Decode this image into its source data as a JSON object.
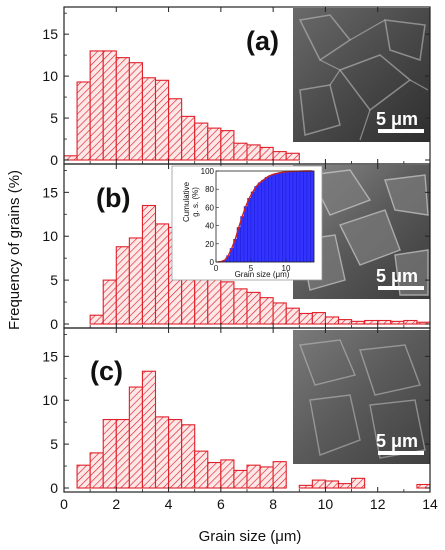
{
  "figure": {
    "ylabel": "Frequency of grains (%)",
    "xlabel": "Grain size (μm)",
    "scale_bar": "5 μm"
  },
  "colors": {
    "bar_edge": "#e0202a",
    "bar_hatch": "#e0202a",
    "bar_fill": "#fde7e7",
    "inset_fill": "#3333ff",
    "inset_line": "#cc2222"
  },
  "chart_data": [
    {
      "type": "bar",
      "panel": "(a)",
      "bin_width": 0.5,
      "x": [
        0.25,
        0.75,
        1.25,
        1.75,
        2.25,
        2.75,
        3.25,
        3.75,
        4.25,
        4.75,
        5.25,
        5.75,
        6.25,
        6.75,
        7.25,
        7.75,
        8.25,
        8.75
      ],
      "values": [
        0.5,
        9.3,
        13.0,
        13.0,
        12.2,
        11.6,
        9.8,
        9.5,
        7.3,
        5.2,
        4.4,
        3.8,
        3.5,
        2.0,
        1.8,
        1.5,
        1.0,
        0.8
      ],
      "xlim": [
        0,
        14
      ],
      "ylim": [
        0,
        18
      ],
      "yticks": [
        0,
        5,
        10,
        15
      ],
      "grid": false
    },
    {
      "type": "bar",
      "panel": "(b)",
      "bin_width": 0.5,
      "x": [
        1.25,
        1.75,
        2.25,
        2.75,
        3.25,
        3.75,
        4.25,
        4.75,
        5.25,
        5.75,
        6.25,
        6.75,
        7.25,
        7.75,
        8.25,
        8.75,
        9.25,
        9.75,
        10.25,
        10.75,
        11.25,
        11.75,
        12.25,
        12.75,
        13.25,
        13.75
      ],
      "values": [
        1.0,
        5.0,
        8.8,
        9.8,
        13.5,
        11.4,
        11.0,
        9.3,
        7.5,
        5.9,
        4.8,
        4.0,
        3.6,
        3.0,
        2.4,
        1.8,
        1.2,
        1.3,
        0.8,
        0.5,
        0.3,
        0.4,
        0.4,
        0.3,
        0.4,
        0.2
      ],
      "xlim": [
        0,
        14
      ],
      "ylim": [
        0,
        18
      ],
      "yticks": [
        0,
        5,
        10,
        15
      ],
      "grid": false
    },
    {
      "type": "bar",
      "panel": "(c)",
      "bin_width": 0.5,
      "x": [
        0.75,
        1.25,
        1.75,
        2.25,
        2.75,
        3.25,
        3.75,
        4.25,
        4.75,
        5.25,
        5.75,
        6.25,
        6.75,
        7.25,
        7.75,
        8.25,
        8.75,
        9.25,
        9.75,
        10.25,
        10.75,
        11.25,
        13.25,
        13.75
      ],
      "values": [
        2.6,
        4.0,
        7.8,
        7.8,
        11.5,
        13.3,
        8.1,
        7.8,
        7.2,
        4.2,
        2.9,
        3.2,
        2.0,
        2.6,
        2.4,
        3.0,
        0.0,
        0.3,
        0.9,
        0.8,
        0.5,
        1.1,
        0.0,
        0.4
      ],
      "xlim": [
        0,
        14
      ],
      "ylim": [
        0,
        18
      ],
      "yticks": [
        0,
        5,
        10,
        15
      ],
      "xticks": [
        0,
        2,
        4,
        6,
        8,
        10,
        12,
        14
      ],
      "grid": false
    },
    {
      "type": "bar",
      "panel": "(b) inset",
      "xlabel": "Grain size (μm)",
      "ylabel_lines": [
        "Cumulative",
        "g. s. (%)"
      ],
      "xticks": [
        0,
        5,
        10
      ],
      "yticks": [
        0,
        20,
        40,
        60,
        80,
        100
      ],
      "xlim": [
        0,
        14
      ],
      "ylim": [
        0,
        100
      ],
      "x": [
        0.25,
        0.75,
        1.25,
        1.75,
        2.25,
        2.75,
        3.25,
        3.75,
        4.25,
        4.75,
        5.25,
        5.75,
        6.25,
        6.75,
        7.25,
        7.75,
        8.25,
        8.75,
        9.25,
        9.75,
        10.25,
        10.75,
        11.25,
        11.75,
        12.25,
        12.75,
        13.25,
        13.75
      ],
      "values": [
        0,
        0.5,
        2,
        7,
        15,
        25,
        38,
        50,
        61,
        70,
        77,
        83,
        87,
        90,
        93,
        95,
        96.5,
        97.5,
        98.3,
        98.8,
        99.2,
        99.5,
        99.7,
        99.8,
        99.9,
        100,
        100,
        100
      ]
    }
  ]
}
